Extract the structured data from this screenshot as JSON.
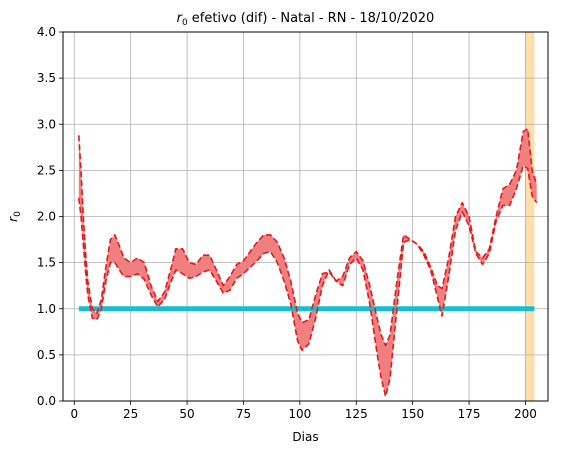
{
  "chart_data": {
    "type": "line",
    "title_main": "efetivo (dif) - Natal - RN - 18/10/2020",
    "title_symbol": "r",
    "title_subscript": "0",
    "xlabel": "Dias",
    "ylabel_symbol": "r",
    "ylabel_subscript": "0",
    "xlim": [
      -5,
      210
    ],
    "ylim": [
      0,
      4
    ],
    "xticks": [
      0,
      25,
      50,
      75,
      100,
      125,
      150,
      175,
      200
    ],
    "yticks": [
      0.0,
      0.5,
      1.0,
      1.5,
      2.0,
      2.5,
      3.0,
      3.5,
      4.0
    ],
    "ytick_labels": [
      "0.0",
      "0.5",
      "1.0",
      "1.5",
      "2.0",
      "2.5",
      "3.0",
      "3.5",
      "4.0"
    ],
    "grid": true,
    "band_color": "#f08080",
    "line_color": "#e31a1c",
    "ref_line_color": "#17becf",
    "highlight_color": "#ffdead",
    "reference_line": {
      "x": [
        2,
        204
      ],
      "y": 1.0
    },
    "highlight_span": [
      200,
      204
    ],
    "series": [
      {
        "role": "upper",
        "x": [
          2,
          3,
          4,
          5,
          6,
          8,
          10,
          12,
          14,
          16,
          18,
          20,
          22,
          25,
          28,
          31,
          34,
          37,
          40,
          43,
          45,
          48,
          51,
          54,
          57,
          60,
          63,
          66,
          69,
          72,
          75,
          78,
          81,
          84,
          87,
          90,
          93,
          96,
          99,
          101,
          104,
          107,
          110,
          113,
          116,
          119,
          122,
          125,
          128,
          131,
          134,
          136,
          138,
          140,
          143,
          146,
          149,
          152,
          155,
          158,
          161,
          163,
          166,
          169,
          172,
          175,
          178,
          181,
          184,
          187,
          190,
          193,
          196,
          199,
          201,
          203,
          205
        ],
        "y": [
          2.88,
          2.5,
          2.0,
          1.6,
          1.3,
          1.0,
          0.95,
          1.1,
          1.45,
          1.75,
          1.8,
          1.68,
          1.55,
          1.5,
          1.55,
          1.5,
          1.25,
          1.08,
          1.18,
          1.45,
          1.65,
          1.65,
          1.5,
          1.48,
          1.58,
          1.58,
          1.42,
          1.25,
          1.35,
          1.48,
          1.52,
          1.62,
          1.72,
          1.8,
          1.8,
          1.72,
          1.55,
          1.3,
          0.95,
          0.85,
          0.88,
          1.15,
          1.38,
          1.4,
          1.3,
          1.35,
          1.55,
          1.62,
          1.52,
          1.25,
          0.92,
          0.72,
          0.6,
          0.72,
          1.3,
          1.8,
          1.75,
          1.7,
          1.62,
          1.45,
          1.25,
          1.22,
          1.55,
          2.0,
          2.15,
          2.0,
          1.62,
          1.55,
          1.65,
          2.0,
          2.3,
          2.35,
          2.5,
          2.92,
          2.95,
          2.5,
          2.35
        ]
      },
      {
        "role": "lower",
        "x": [
          2,
          3,
          4,
          5,
          6,
          8,
          10,
          12,
          14,
          16,
          18,
          20,
          22,
          25,
          28,
          31,
          34,
          37,
          40,
          43,
          45,
          48,
          51,
          54,
          57,
          60,
          63,
          66,
          69,
          72,
          75,
          78,
          81,
          84,
          87,
          90,
          93,
          96,
          99,
          101,
          104,
          107,
          110,
          113,
          116,
          119,
          122,
          125,
          128,
          131,
          134,
          136,
          138,
          140,
          143,
          146,
          149,
          152,
          155,
          158,
          161,
          163,
          166,
          169,
          172,
          175,
          178,
          181,
          184,
          187,
          190,
          193,
          196,
          199,
          201,
          203,
          205
        ],
        "y": [
          2.2,
          2.0,
          1.7,
          1.4,
          1.15,
          0.9,
          0.88,
          1.0,
          1.3,
          1.5,
          1.5,
          1.42,
          1.35,
          1.35,
          1.38,
          1.32,
          1.15,
          1.02,
          1.1,
          1.3,
          1.42,
          1.38,
          1.33,
          1.35,
          1.4,
          1.42,
          1.3,
          1.17,
          1.2,
          1.33,
          1.38,
          1.45,
          1.52,
          1.6,
          1.62,
          1.5,
          1.3,
          1.05,
          0.65,
          0.55,
          0.62,
          0.9,
          1.25,
          1.42,
          1.3,
          1.25,
          1.48,
          1.55,
          1.42,
          1.05,
          0.55,
          0.25,
          0.05,
          0.25,
          1.0,
          1.72,
          1.75,
          1.7,
          1.58,
          1.42,
          1.12,
          0.92,
          1.35,
          1.85,
          2.05,
          1.9,
          1.6,
          1.48,
          1.6,
          1.95,
          2.12,
          2.12,
          2.3,
          2.55,
          2.52,
          2.22,
          2.15
        ]
      }
    ]
  }
}
